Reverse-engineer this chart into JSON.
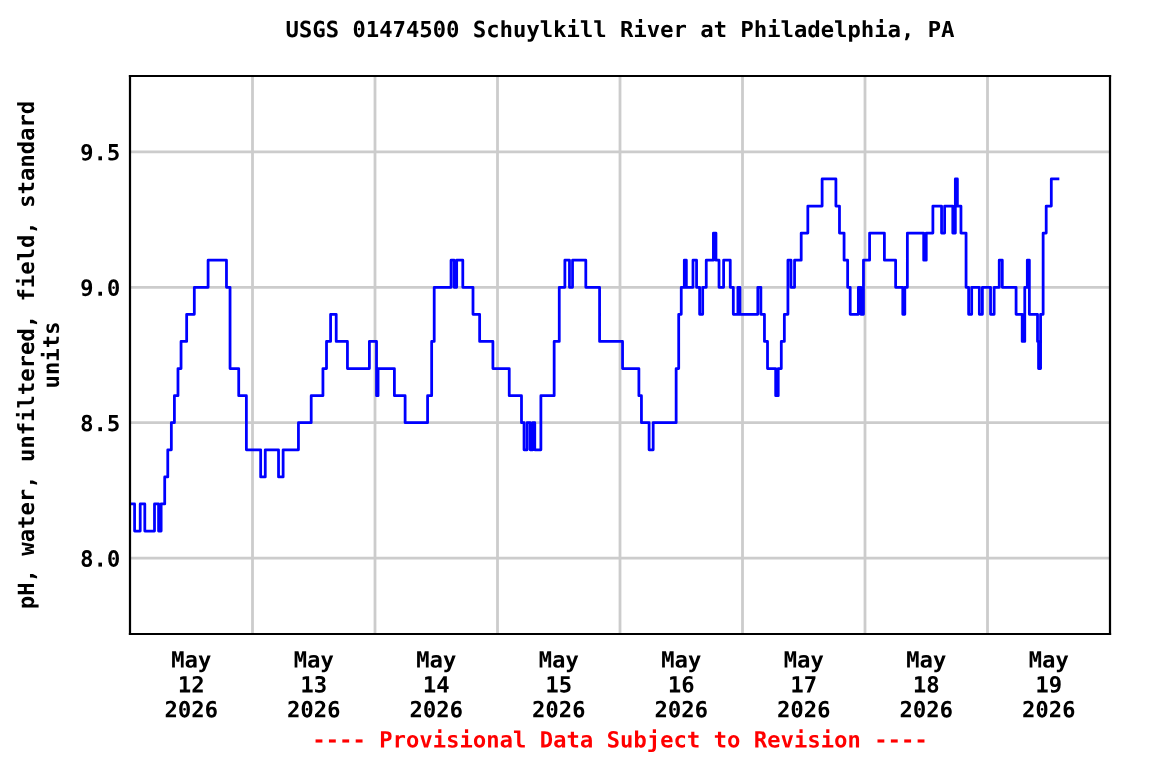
{
  "chart_data": {
    "type": "step",
    "title": "USGS 01474500 Schuylkill River at Philadelphia, PA",
    "ylabel": "pH, water, unfiltered, field, standard\nunits",
    "annotations": [
      "---- Provisional Data Subject to Revision ----"
    ],
    "xlim": [
      "2026-05-12T00:00",
      "2026-05-20T00:00"
    ],
    "xticks": [
      {
        "value": "2026-05-12T12:00",
        "label": "May\n12\n2026"
      },
      {
        "value": "2026-05-13T12:00",
        "label": "May\n13\n2026"
      },
      {
        "value": "2026-05-14T12:00",
        "label": "May\n14\n2026"
      },
      {
        "value": "2026-05-15T12:00",
        "label": "May\n15\n2026"
      },
      {
        "value": "2026-05-16T12:00",
        "label": "May\n16\n2026"
      },
      {
        "value": "2026-05-17T12:00",
        "label": "May\n17\n2026"
      },
      {
        "value": "2026-05-18T12:00",
        "label": "May\n18\n2026"
      },
      {
        "value": "2026-05-19T12:00",
        "label": "May\n19\n2026"
      },
      {
        "value": "2026-05-13T00:00",
        "label": null
      },
      {
        "value": "2026-05-14T00:00",
        "label": null
      },
      {
        "value": "2026-05-15T00:00",
        "label": null
      },
      {
        "value": "2026-05-16T00:00",
        "label": null
      },
      {
        "value": "2026-05-17T00:00",
        "label": null
      },
      {
        "value": "2026-05-18T00:00",
        "label": null
      },
      {
        "value": "2026-05-19T00:00",
        "label": null
      }
    ],
    "ylim": [
      7.72,
      9.78
    ],
    "yticks": [
      {
        "value": 8,
        "label": "8.0"
      },
      8.5,
      {
        "value": 9,
        "label": "9.0"
      },
      9.5
    ],
    "grid": true,
    "line_style": "solid",
    "series": [
      {
        "color": "#0000ff",
        "x": [
          "2026-05-12T00:00",
          "2026-05-12T00:54",
          "2026-05-12T02:00",
          "2026-05-12T02:54",
          "2026-05-12T04:12",
          "2026-05-12T04:48",
          "2026-05-12T05:36",
          "2026-05-12T06:06",
          "2026-05-12T06:48",
          "2026-05-12T07:24",
          "2026-05-12T08:06",
          "2026-05-12T08:42",
          "2026-05-12T09:24",
          "2026-05-12T10:00",
          "2026-05-12T11:06",
          "2026-05-12T12:36",
          "2026-05-12T15:18",
          "2026-05-12T18:00",
          "2026-05-12T18:54",
          "2026-05-12T19:36",
          "2026-05-12T21:18",
          "2026-05-12T22:48",
          "2026-05-13T01:36",
          "2026-05-13T02:30",
          "2026-05-13T05:06",
          "2026-05-13T06:00",
          "2026-05-13T09:00",
          "2026-05-13T11:30",
          "2026-05-13T13:48",
          "2026-05-13T14:30",
          "2026-05-13T15:18",
          "2026-05-13T16:24",
          "2026-05-13T18:36",
          "2026-05-13T22:54",
          "2026-05-14T00:18",
          "2026-05-14T00:36",
          "2026-05-14T03:48",
          "2026-05-14T05:54",
          "2026-05-14T10:18",
          "2026-05-14T11:06",
          "2026-05-14T11:36",
          "2026-05-14T14:54",
          "2026-05-14T15:30",
          "2026-05-14T16:00",
          "2026-05-14T17:12",
          "2026-05-14T19:12",
          "2026-05-14T20:30",
          "2026-05-14T23:06",
          "2026-05-15T02:18",
          "2026-05-15T04:42",
          "2026-05-15T05:12",
          "2026-05-15T05:48",
          "2026-05-15T06:24",
          "2026-05-15T06:54",
          "2026-05-15T07:18",
          "2026-05-15T08:30",
          "2026-05-15T11:06",
          "2026-05-15T12:06",
          "2026-05-15T13:12",
          "2026-05-15T14:06",
          "2026-05-15T14:42",
          "2026-05-15T17:18",
          "2026-05-15T20:00",
          "2026-05-16T00:30",
          "2026-05-16T03:42",
          "2026-05-16T04:12",
          "2026-05-16T05:42",
          "2026-05-16T06:30",
          "2026-05-16T11:00",
          "2026-05-16T11:30",
          "2026-05-16T12:00",
          "2026-05-16T12:36",
          "2026-05-16T13:00",
          "2026-05-16T14:18",
          "2026-05-16T15:00",
          "2026-05-16T15:36",
          "2026-05-16T16:12",
          "2026-05-16T16:54",
          "2026-05-16T18:18",
          "2026-05-16T18:48",
          "2026-05-16T19:24",
          "2026-05-16T20:18",
          "2026-05-16T21:36",
          "2026-05-16T22:12",
          "2026-05-16T23:06",
          "2026-05-16T23:30",
          "2026-05-17T03:00",
          "2026-05-17T03:36",
          "2026-05-17T04:18",
          "2026-05-17T04:54",
          "2026-05-17T06:30",
          "2026-05-17T07:00",
          "2026-05-17T07:36",
          "2026-05-17T08:12",
          "2026-05-17T08:54",
          "2026-05-17T09:30",
          "2026-05-17T10:12",
          "2026-05-17T11:30",
          "2026-05-17T12:48",
          "2026-05-17T15:36",
          "2026-05-17T18:18",
          "2026-05-17T19:00",
          "2026-05-17T19:54",
          "2026-05-17T20:36",
          "2026-05-17T21:06",
          "2026-05-17T22:42",
          "2026-05-17T23:12",
          "2026-05-17T23:42",
          "2026-05-18T00:54",
          "2026-05-18T03:48",
          "2026-05-18T06:00",
          "2026-05-18T07:24",
          "2026-05-18T07:48",
          "2026-05-18T08:18",
          "2026-05-18T11:30",
          "2026-05-18T12:00",
          "2026-05-18T13:18",
          "2026-05-18T15:00",
          "2026-05-18T15:36",
          "2026-05-18T17:12",
          "2026-05-18T17:42",
          "2026-05-18T18:06",
          "2026-05-18T18:48",
          "2026-05-18T19:48",
          "2026-05-18T20:18",
          "2026-05-18T20:54",
          "2026-05-18T22:24",
          "2026-05-18T23:00",
          "2026-05-19T00:36",
          "2026-05-19T01:18",
          "2026-05-19T02:18",
          "2026-05-19T02:54",
          "2026-05-19T05:36",
          "2026-05-19T06:48",
          "2026-05-19T07:18",
          "2026-05-19T07:48",
          "2026-05-19T08:12",
          "2026-05-19T09:48",
          "2026-05-19T10:00",
          "2026-05-19T10:24",
          "2026-05-19T10:54",
          "2026-05-19T11:30",
          "2026-05-19T12:30",
          "2026-05-19T13:48"
        ],
        "values": [
          8.2,
          8.1,
          8.2,
          8.1,
          8.1,
          8.2,
          8.1,
          8.2,
          8.3,
          8.4,
          8.5,
          8.6,
          8.7,
          8.8,
          8.9,
          9.0,
          9.1,
          9.1,
          9.0,
          8.7,
          8.6,
          8.4,
          8.3,
          8.4,
          8.3,
          8.4,
          8.5,
          8.6,
          8.7,
          8.8,
          8.9,
          8.8,
          8.7,
          8.8,
          8.6,
          8.7,
          8.6,
          8.5,
          8.6,
          8.8,
          9.0,
          9.1,
          9.0,
          9.1,
          9.0,
          8.9,
          8.8,
          8.7,
          8.6,
          8.5,
          8.4,
          8.5,
          8.4,
          8.5,
          8.4,
          8.6,
          8.8,
          9.0,
          9.1,
          9.0,
          9.1,
          9.0,
          8.8,
          8.7,
          8.6,
          8.5,
          8.4,
          8.5,
          8.7,
          8.9,
          9.0,
          9.1,
          9.0,
          9.1,
          9.0,
          8.9,
          9.0,
          9.1,
          9.2,
          9.1,
          9.0,
          9.1,
          9.0,
          8.9,
          9.0,
          8.9,
          9.0,
          8.9,
          8.8,
          8.7,
          8.6,
          8.7,
          8.8,
          8.9,
          9.1,
          9.0,
          9.1,
          9.2,
          9.3,
          9.4,
          9.3,
          9.2,
          9.1,
          9.0,
          8.9,
          9.0,
          8.9,
          9.1,
          9.2,
          9.1,
          9.0,
          8.9,
          9.0,
          9.2,
          9.1,
          9.2,
          9.3,
          9.2,
          9.3,
          9.2,
          9.4,
          9.3,
          9.2,
          9.0,
          8.9,
          9.0,
          8.9,
          9.0,
          8.9,
          9.0,
          9.1,
          9.0,
          8.9,
          8.8,
          9.0,
          9.1,
          8.9,
          8.8,
          8.7,
          8.9,
          9.2,
          9.3,
          9.4,
          9.4
        ]
      }
    ]
  }
}
